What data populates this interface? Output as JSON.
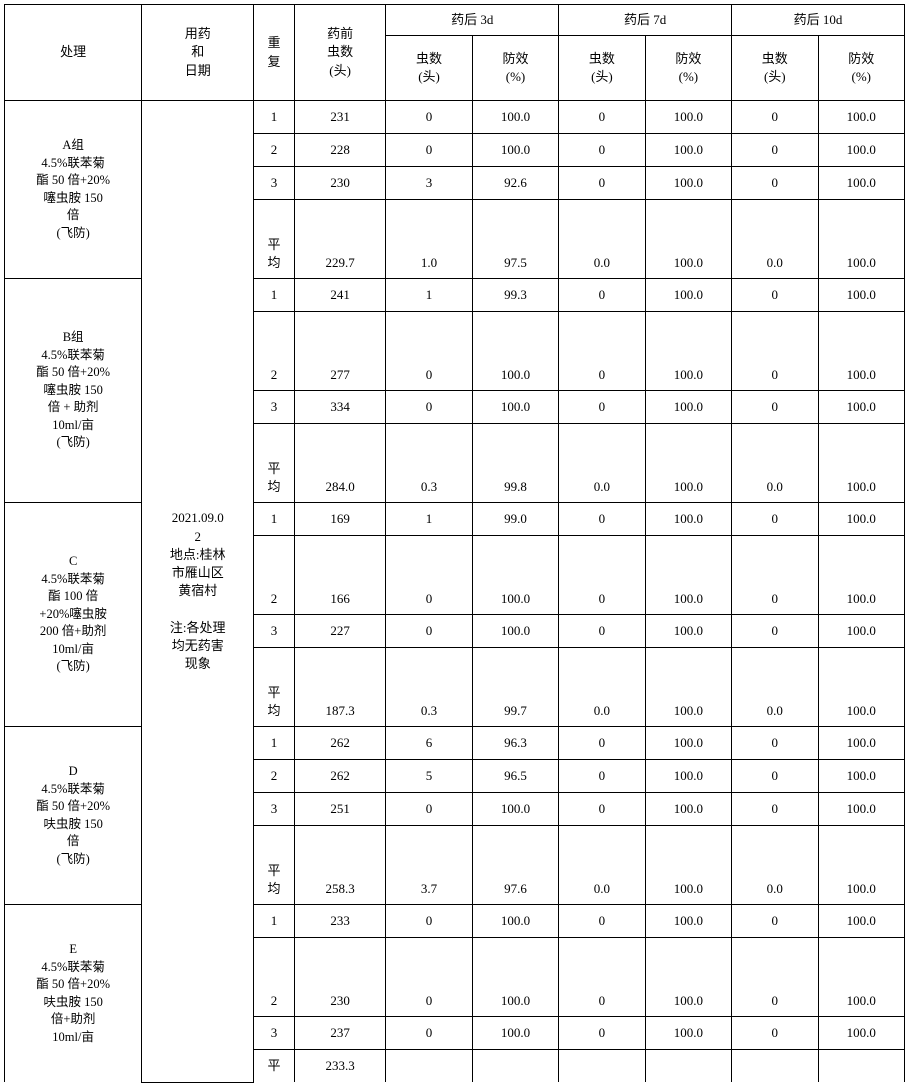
{
  "colors": {
    "border": "#000000",
    "background": "#ffffff",
    "text": "#000000"
  },
  "fonts": {
    "base_size": 13,
    "family": "SimSun"
  },
  "header": {
    "treatment": "处理",
    "dosage_date": "用药\n和\n日期",
    "repeat": "重\n复",
    "pre_count": "药前\n虫数\n(头)",
    "d3": "药后 3d",
    "d7": "药后 7d",
    "d10": "药后 10d",
    "count": "虫数\n(头)",
    "efficacy": "防效\n(%)"
  },
  "info": "2021.09.0\n2\n地点:桂林\n市雁山区\n黄宿村\n\n注:各处理\n均无药害\n现象",
  "avg_label": "平\n均",
  "groups": [
    {
      "label": "A组\n4.5%联苯菊\n酯 50 倍+20%\n噻虫胺 150\n倍\n(飞防)",
      "rows": [
        {
          "rep": "1",
          "pre": "231",
          "d3c": "0",
          "d3e": "100.0",
          "d7c": "0",
          "d7e": "100.0",
          "d10c": "0",
          "d10e": "100.0"
        },
        {
          "rep": "2",
          "pre": "228",
          "d3c": "0",
          "d3e": "100.0",
          "d7c": "0",
          "d7e": "100.0",
          "d10c": "0",
          "d10e": "100.0"
        },
        {
          "rep": "3",
          "pre": "230",
          "d3c": "3",
          "d3e": "92.6",
          "d7c": "0",
          "d7e": "100.0",
          "d10c": "0",
          "d10e": "100.0"
        }
      ],
      "avg": {
        "pre": "229.7",
        "d3c": "1.0",
        "d3e": "97.5",
        "d7c": "0.0",
        "d7e": "100.0",
        "d10c": "0.0",
        "d10e": "100.0"
      }
    },
    {
      "label": "B组\n4.5%联苯菊\n酯 50 倍+20%\n噻虫胺 150\n倍 + 助剂\n10ml/亩\n(飞防)",
      "rows": [
        {
          "rep": "1",
          "pre": "241",
          "d3c": "1",
          "d3e": "99.3",
          "d7c": "0",
          "d7e": "100.0",
          "d10c": "0",
          "d10e": "100.0"
        },
        {
          "rep": "2",
          "pre": "277",
          "d3c": "0",
          "d3e": "100.0",
          "d7c": "0",
          "d7e": "100.0",
          "d10c": "0",
          "d10e": "100.0"
        },
        {
          "rep": "3",
          "pre": "334",
          "d3c": "0",
          "d3e": "100.0",
          "d7c": "0",
          "d7e": "100.0",
          "d10c": "0",
          "d10e": "100.0"
        }
      ],
      "avg": {
        "pre": "284.0",
        "d3c": "0.3",
        "d3e": "99.8",
        "d7c": "0.0",
        "d7e": "100.0",
        "d10c": "0.0",
        "d10e": "100.0"
      }
    },
    {
      "label": "C\n4.5%联苯菊\n酯 100 倍\n+20%噻虫胺\n200 倍+助剂\n10ml/亩\n(飞防)",
      "rows": [
        {
          "rep": "1",
          "pre": "169",
          "d3c": "1",
          "d3e": "99.0",
          "d7c": "0",
          "d7e": "100.0",
          "d10c": "0",
          "d10e": "100.0"
        },
        {
          "rep": "2",
          "pre": "166",
          "d3c": "0",
          "d3e": "100.0",
          "d7c": "0",
          "d7e": "100.0",
          "d10c": "0",
          "d10e": "100.0"
        },
        {
          "rep": "3",
          "pre": "227",
          "d3c": "0",
          "d3e": "100.0",
          "d7c": "0",
          "d7e": "100.0",
          "d10c": "0",
          "d10e": "100.0"
        }
      ],
      "avg": {
        "pre": "187.3",
        "d3c": "0.3",
        "d3e": "99.7",
        "d7c": "0.0",
        "d7e": "100.0",
        "d10c": "0.0",
        "d10e": "100.0"
      }
    },
    {
      "label": "D\n4.5%联苯菊\n酯 50 倍+20%\n呋虫胺 150\n倍\n(飞防)",
      "rows": [
        {
          "rep": "1",
          "pre": "262",
          "d3c": "6",
          "d3e": "96.3",
          "d7c": "0",
          "d7e": "100.0",
          "d10c": "0",
          "d10e": "100.0"
        },
        {
          "rep": "2",
          "pre": "262",
          "d3c": "5",
          "d3e": "96.5",
          "d7c": "0",
          "d7e": "100.0",
          "d10c": "0",
          "d10e": "100.0"
        },
        {
          "rep": "3",
          "pre": "251",
          "d3c": "0",
          "d3e": "100.0",
          "d7c": "0",
          "d7e": "100.0",
          "d10c": "0",
          "d10e": "100.0"
        }
      ],
      "avg": {
        "pre": "258.3",
        "d3c": "3.7",
        "d3e": "97.6",
        "d7c": "0.0",
        "d7e": "100.0",
        "d10c": "0.0",
        "d10e": "100.0"
      }
    },
    {
      "label": "E\n4.5%联苯菊\n酯 50 倍+20%\n呋虫胺 150\n倍+助剂\n10ml/亩",
      "rows": [
        {
          "rep": "1",
          "pre": "233",
          "d3c": "0",
          "d3e": "100.0",
          "d7c": "0",
          "d7e": "100.0",
          "d10c": "0",
          "d10e": "100.0"
        },
        {
          "rep": "2",
          "pre": "230",
          "d3c": "0",
          "d3e": "100.0",
          "d7c": "0",
          "d7e": "100.0",
          "d10c": "0",
          "d10e": "100.0"
        },
        {
          "rep": "3",
          "pre": "237",
          "d3c": "0",
          "d3e": "100.0",
          "d7c": "0",
          "d7e": "100.0",
          "d10c": "0",
          "d10e": "100.0"
        }
      ],
      "avg_partial": {
        "rep": "平",
        "pre": "233.3"
      }
    }
  ]
}
